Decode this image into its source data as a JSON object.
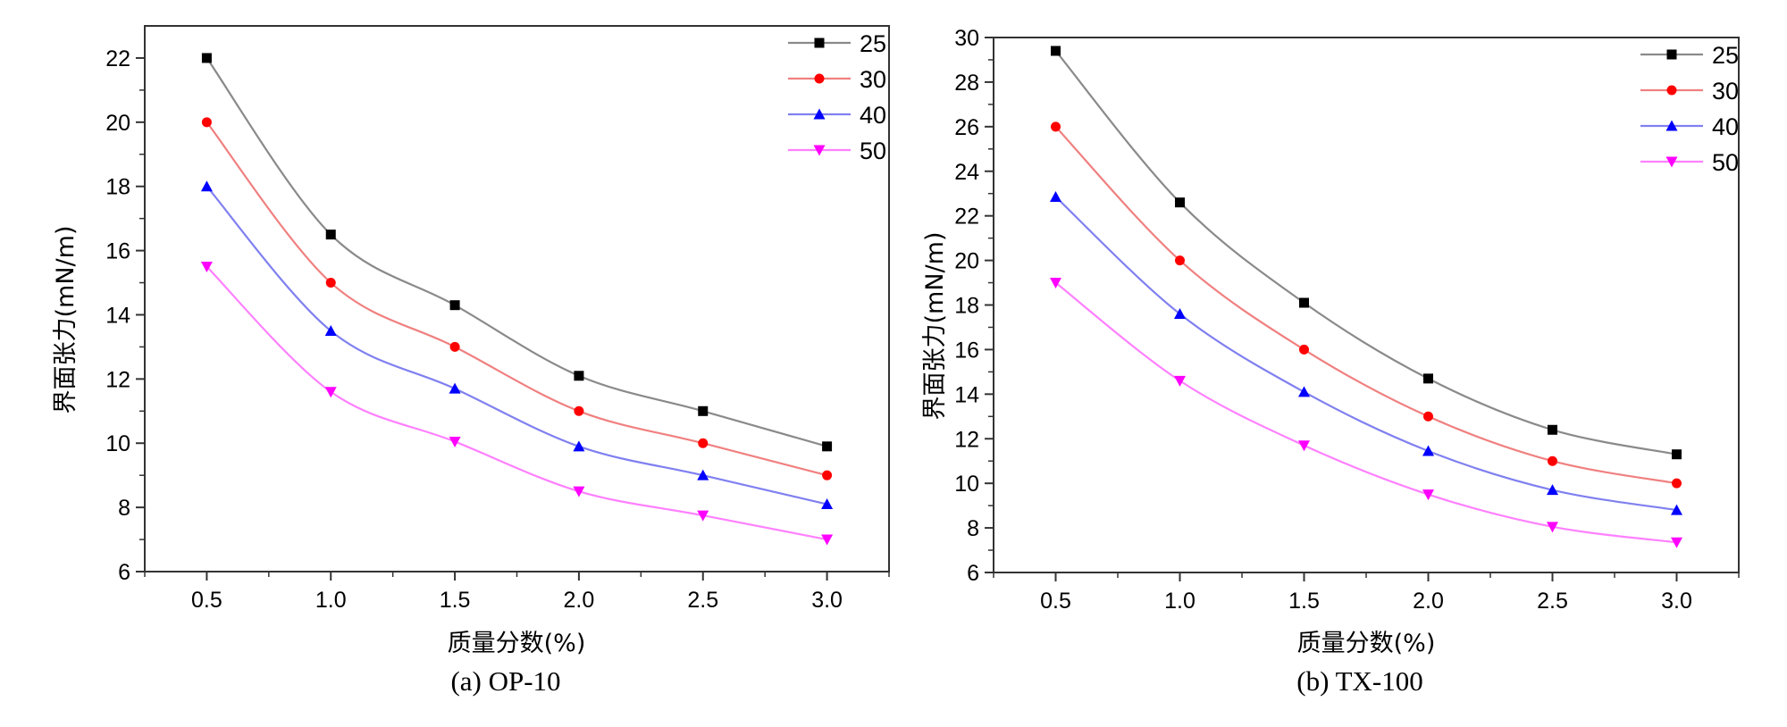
{
  "chart_data": [
    {
      "type": "line",
      "caption": "(a) OP-10",
      "xlabel": "质量分数(%)",
      "ylabel": "界面张力(mN/m)",
      "x": [
        0.5,
        1.0,
        1.5,
        2.0,
        2.5,
        3.0
      ],
      "xtick_labels": [
        "0.5",
        "1.0",
        "1.5",
        "2.0",
        "2.5",
        "3.0"
      ],
      "xlim": [
        0.25,
        3.25
      ],
      "ylim": [
        6,
        23
      ],
      "yticks": [
        6,
        8,
        10,
        12,
        14,
        16,
        18,
        20,
        22
      ],
      "ytick_labels": [
        "6",
        "8",
        "10",
        "12",
        "14",
        "16",
        "18",
        "20",
        "22"
      ],
      "legend_position": "top-right",
      "series": [
        {
          "name": "25",
          "color": "#000000",
          "line_color": "#8a8a8a",
          "marker": "square",
          "values": [
            22.0,
            16.5,
            14.3,
            12.1,
            11.0,
            9.9
          ]
        },
        {
          "name": "30",
          "color": "#ff0000",
          "line_color": "#f08080",
          "marker": "circle",
          "values": [
            20.0,
            15.0,
            13.0,
            11.0,
            10.0,
            9.0
          ]
        },
        {
          "name": "40",
          "color": "#0000ff",
          "line_color": "#8080f0",
          "marker": "triangle-up",
          "values": [
            18.0,
            13.5,
            11.7,
            9.9,
            9.0,
            8.1
          ]
        },
        {
          "name": "50",
          "color": "#ff00ff",
          "line_color": "#ff80ff",
          "marker": "triangle-down",
          "values": [
            15.5,
            11.6,
            10.05,
            8.5,
            7.75,
            7.0
          ]
        }
      ]
    },
    {
      "type": "line",
      "caption": "(b) TX-100",
      "xlabel": "质量分数(%)",
      "ylabel": "界面张力(mN/m)",
      "x": [
        0.5,
        1.0,
        1.5,
        2.0,
        2.5,
        3.0
      ],
      "xtick_labels": [
        "0.5",
        "1.0",
        "1.5",
        "2.0",
        "2.5",
        "3.0"
      ],
      "xlim": [
        0.25,
        3.25
      ],
      "ylim": [
        6,
        30
      ],
      "yticks": [
        6,
        8,
        10,
        12,
        14,
        16,
        18,
        20,
        22,
        24,
        26,
        28,
        30
      ],
      "ytick_labels": [
        "6",
        "8",
        "10",
        "12",
        "14",
        "16",
        "18",
        "20",
        "22",
        "24",
        "26",
        "28",
        "30"
      ],
      "legend_position": "top-right",
      "series": [
        {
          "name": "25",
          "color": "#000000",
          "line_color": "#8a8a8a",
          "marker": "square",
          "values": [
            29.4,
            22.6,
            18.1,
            14.7,
            12.4,
            11.3
          ]
        },
        {
          "name": "30",
          "color": "#ff0000",
          "line_color": "#f08080",
          "marker": "circle",
          "values": [
            26.0,
            20.0,
            16.0,
            13.0,
            11.0,
            10.0
          ]
        },
        {
          "name": "40",
          "color": "#0000ff",
          "line_color": "#8080f0",
          "marker": "triangle-up",
          "values": [
            22.85,
            17.6,
            14.1,
            11.45,
            9.7,
            8.8
          ]
        },
        {
          "name": "50",
          "color": "#ff00ff",
          "line_color": "#ff80ff",
          "marker": "triangle-down",
          "values": [
            19.0,
            14.6,
            11.7,
            9.5,
            8.05,
            7.35
          ]
        }
      ]
    }
  ]
}
